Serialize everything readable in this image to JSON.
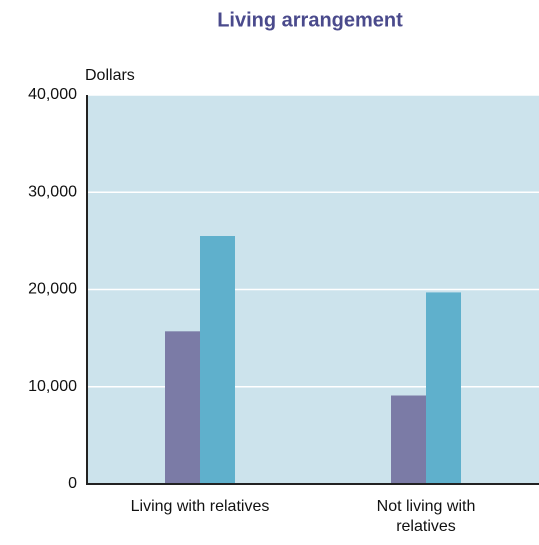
{
  "chart_data": {
    "type": "bar",
    "title": "Living arrangement",
    "y_label": "Dollars",
    "categories": [
      "Living with relatives",
      "Not living with relatives"
    ],
    "series": [
      {
        "color": "#7b7ba6",
        "values": [
          15700,
          9100
        ]
      },
      {
        "color": "#5fb0cc",
        "values": [
          25500,
          19700
        ]
      }
    ],
    "ylim": [
      0,
      40000
    ],
    "yticks": [
      0,
      {
        "value": 10000,
        "label": "10,000"
      },
      {
        "value": 20000,
        "label": "20,000"
      },
      {
        "value": 30000,
        "label": "30,000"
      },
      {
        "value": 40000,
        "label": "40,000"
      }
    ],
    "grid": true
  }
}
